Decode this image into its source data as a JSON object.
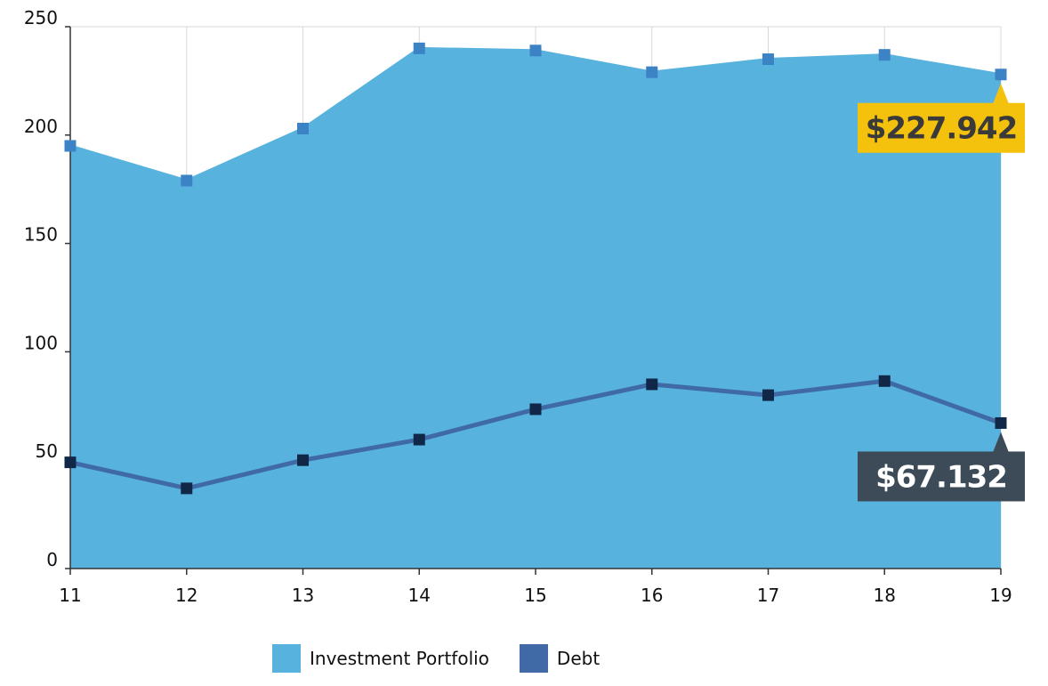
{
  "chart_data": {
    "type": "area",
    "x": [
      11,
      12,
      13,
      14,
      15,
      16,
      17,
      18,
      19
    ],
    "series": [
      {
        "name": "Investment Portfolio",
        "kind": "area",
        "color": "#58b2de",
        "marker_color": "#3c83c6",
        "values": [
          195,
          179,
          203,
          240,
          239,
          229,
          235,
          237,
          227.942
        ]
      },
      {
        "name": "Debt",
        "kind": "line",
        "color": "#3f6aa5",
        "marker_color": "#112748",
        "values": [
          49,
          37,
          50,
          59.5,
          73.5,
          85,
          80,
          86.5,
          67.132
        ]
      }
    ],
    "ylim": [
      0,
      250
    ],
    "yticks": [
      0,
      50,
      100,
      150,
      200,
      250
    ],
    "xticks": [
      "11",
      "12",
      "13",
      "14",
      "15",
      "16",
      "17",
      "18",
      "19"
    ],
    "grid": "vertical",
    "legend": "bottom-center",
    "annotations": [
      {
        "series": "Investment Portfolio",
        "text": "$227.942",
        "bg": "#f4c20d",
        "color": "#3a3a3a"
      },
      {
        "series": "Debt",
        "text": "$67.132",
        "bg": "#3d4b58",
        "color": "#ffffff"
      }
    ]
  },
  "legend": {
    "items": [
      {
        "label": "Investment Portfolio",
        "color": "#58b2de"
      },
      {
        "label": "Debt",
        "color": "#3f6aa5"
      }
    ]
  }
}
